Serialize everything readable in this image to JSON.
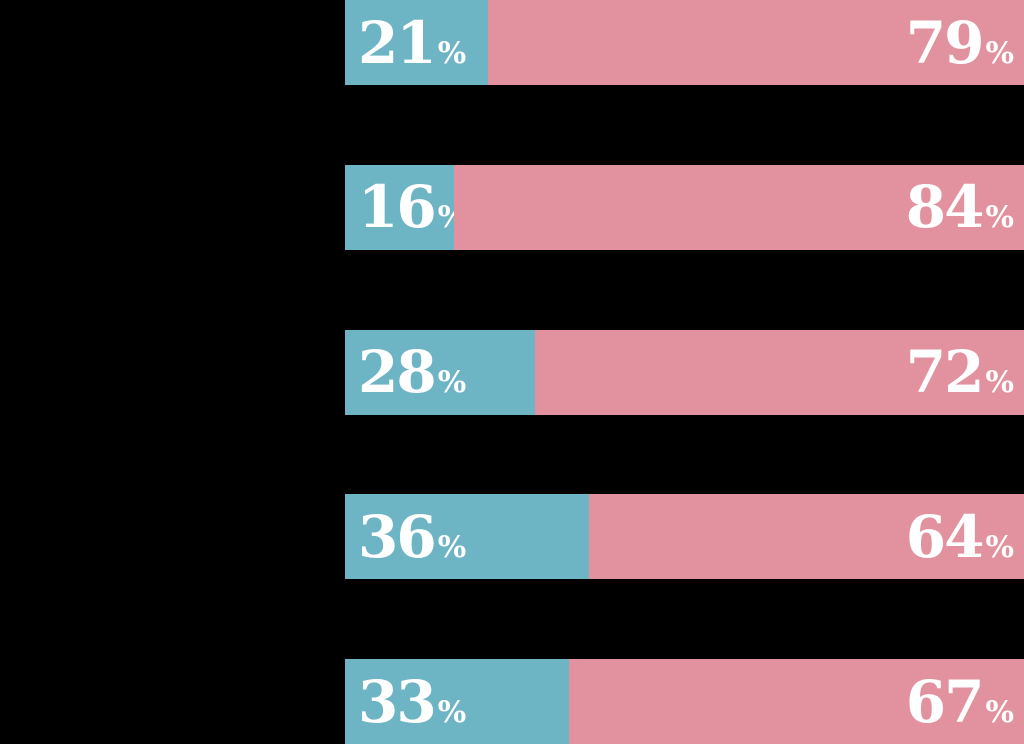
{
  "colors": {
    "background": "#000000",
    "teal": "#6db4c4",
    "pink": "#e2919e",
    "label_text": "#ffffff"
  },
  "chart_data": {
    "type": "bar",
    "orientation": "horizontal",
    "stacked": true,
    "title": "",
    "xlabel": "",
    "ylabel": "",
    "xlim": [
      0,
      100
    ],
    "grid": false,
    "legend": "none",
    "axes_visible": false,
    "unit": "%",
    "categories": [
      "",
      "",
      "",
      "",
      ""
    ],
    "series": [
      {
        "name": "teal-segment",
        "color": "#6db4c4",
        "values": [
          21,
          16,
          28,
          36,
          33
        ]
      },
      {
        "name": "pink-segment",
        "color": "#e2919e",
        "values": [
          79,
          84,
          72,
          64,
          67
        ]
      }
    ],
    "percent_sign": "%",
    "rows": [
      {
        "left": 21,
        "right": 79,
        "left_label": "21",
        "right_label": "79"
      },
      {
        "left": 16,
        "right": 84,
        "left_label": "16",
        "right_label": "84"
      },
      {
        "left": 28,
        "right": 72,
        "left_label": "28",
        "right_label": "72"
      },
      {
        "left": 36,
        "right": 64,
        "left_label": "36",
        "right_label": "64"
      },
      {
        "left": 33,
        "right": 67,
        "left_label": "33",
        "right_label": "67"
      }
    ]
  }
}
